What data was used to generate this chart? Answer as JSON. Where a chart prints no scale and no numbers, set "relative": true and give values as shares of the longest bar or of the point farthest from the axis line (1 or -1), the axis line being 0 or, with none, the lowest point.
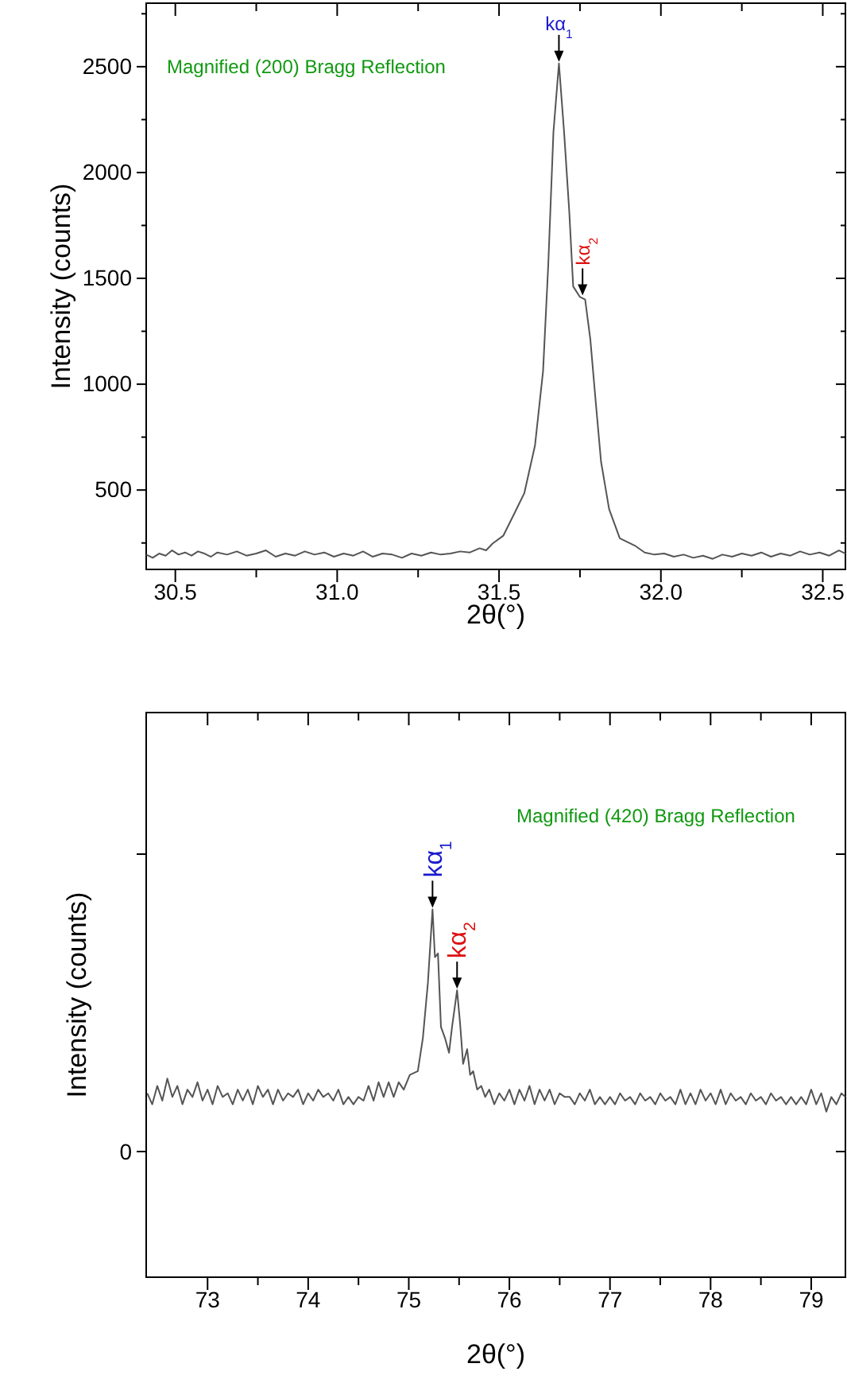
{
  "chart_data": [
    {
      "type": "line",
      "xlabel": "2θ(°)",
      "ylabel": "Intensity (counts)",
      "xlim": [
        30.41,
        32.57
      ],
      "ylim": [
        125,
        2800
      ],
      "xticks": [
        30.5,
        {
          "value": 30.75,
          "label": null
        },
        "31.0",
        {
          "value": 31.25,
          "label": null
        },
        31.5,
        {
          "value": 31.75,
          "label": null
        },
        "32.0",
        {
          "value": 32.25,
          "label": null
        },
        32.5
      ],
      "yticks": [
        {
          "value": 250,
          "label": null
        },
        500,
        {
          "value": 750,
          "label": null
        },
        1000,
        {
          "value": 1250,
          "label": null
        },
        1500,
        {
          "value": 1750,
          "label": null
        },
        2000,
        {
          "value": 2250,
          "label": null
        },
        2500,
        {
          "value": 2750,
          "label": null
        }
      ],
      "annotations": [
        "Magnified (200) Bragg Reflection",
        {
          "text": "kα$_{1}$",
          "x": 31.685,
          "y": 2515
        },
        {
          "text": "kα$_{2}$",
          "x": 31.758,
          "y": 1412
        }
      ],
      "series": [
        {
          "color": "#555555",
          "x": [
            30.41,
            30.43,
            30.45,
            30.47,
            30.49,
            30.51,
            30.53,
            30.55,
            30.57,
            30.59,
            30.61,
            30.63,
            30.66,
            30.69,
            30.72,
            30.75,
            30.78,
            30.81,
            30.84,
            30.87,
            30.9,
            30.93,
            30.96,
            30.99,
            31.02,
            31.05,
            31.08,
            31.11,
            31.14,
            31.17,
            31.2,
            31.23,
            31.26,
            31.29,
            31.32,
            31.35,
            31.38,
            31.41,
            31.44,
            31.46,
            31.48,
            31.513,
            31.546,
            31.578,
            31.611,
            31.636,
            31.652,
            31.668,
            31.685,
            31.701,
            31.717,
            31.729,
            31.75,
            31.766,
            31.782,
            31.799,
            31.815,
            31.84,
            31.873,
            31.922,
            31.95,
            31.98,
            32.01,
            32.04,
            32.07,
            32.1,
            32.13,
            32.16,
            32.19,
            32.22,
            32.25,
            32.28,
            32.31,
            32.34,
            32.37,
            32.4,
            32.43,
            32.46,
            32.49,
            32.52,
            32.55,
            32.57
          ],
          "values": [
            195,
            180,
            200,
            190,
            215,
            195,
            205,
            190,
            210,
            200,
            185,
            205,
            195,
            210,
            190,
            200,
            215,
            185,
            200,
            190,
            210,
            195,
            205,
            185,
            200,
            190,
            210,
            185,
            200,
            195,
            180,
            200,
            190,
            205,
            195,
            200,
            210,
            205,
            225,
            215,
            247,
            284,
            385,
            485,
            710,
            1062,
            1562,
            2190,
            2515,
            2190,
            1814,
            1462,
            1412,
            1400,
            1212,
            911,
            635,
            410,
            272,
            235,
            205,
            195,
            200,
            185,
            195,
            180,
            190,
            175,
            195,
            185,
            200,
            190,
            205,
            185,
            200,
            190,
            210,
            195,
            205,
            190,
            215,
            200
          ]
        }
      ]
    },
    {
      "type": "line",
      "relative": true,
      "xlabel": "2θ(°)",
      "ylabel": "Intensity (counts)",
      "xlim": [
        72.39,
        79.34
      ],
      "xticks": [
        73,
        {
          "value": 73.5,
          "label": null
        },
        74,
        {
          "value": 74.5,
          "label": null
        },
        75,
        {
          "value": 75.5,
          "label": null
        },
        76,
        {
          "value": 76.5,
          "label": null
        },
        77,
        {
          "value": 77.5,
          "label": null
        },
        78,
        {
          "value": 78.5,
          "label": null
        },
        79
      ],
      "annotations": [
        "Magnified (420) Bragg Reflection",
        "0",
        {
          "text": "kα$_{1}$",
          "x": 75.236,
          "y": 1
        },
        {
          "text": "kα$_{2}$",
          "x": 75.48,
          "y": 0.78
        }
      ],
      "series": [
        {
          "color": "#555555",
          "x": [
            72.4,
            72.45,
            72.5,
            72.55,
            72.6,
            72.65,
            72.7,
            72.75,
            72.8,
            72.85,
            72.9,
            72.95,
            73,
            73.05,
            73.1,
            73.15,
            73.2,
            73.25,
            73.3,
            73.35,
            73.4,
            73.45,
            73.5,
            73.55,
            73.6,
            73.65,
            73.7,
            73.75,
            73.8,
            73.85,
            73.9,
            73.95,
            74,
            74.05,
            74.1,
            74.15,
            74.2,
            74.25,
            74.3,
            74.35,
            74.4,
            74.45,
            74.5,
            74.55,
            74.6,
            74.65,
            74.7,
            74.75,
            74.8,
            74.85,
            74.9,
            74.95,
            75.01,
            75.09,
            75.14,
            75.19,
            75.236,
            75.26,
            75.29,
            75.32,
            75.36,
            75.4,
            75.43,
            75.46,
            75.48,
            75.51,
            75.54,
            75.58,
            75.61,
            75.64,
            75.68,
            75.72,
            75.76,
            75.8,
            75.85,
            75.9,
            75.95,
            76,
            76.05,
            76.1,
            76.15,
            76.2,
            76.25,
            76.3,
            76.35,
            76.4,
            76.45,
            76.5,
            76.55,
            76.6,
            76.65,
            76.7,
            76.75,
            76.8,
            76.85,
            76.9,
            76.95,
            77,
            77.05,
            77.1,
            77.15,
            77.2,
            77.25,
            77.3,
            77.35,
            77.4,
            77.45,
            77.5,
            77.55,
            77.6,
            77.65,
            77.7,
            77.75,
            77.8,
            77.85,
            77.9,
            77.95,
            78,
            78.05,
            78.1,
            78.15,
            78.2,
            78.25,
            78.3,
            78.35,
            78.4,
            78.45,
            78.5,
            78.55,
            78.6,
            78.65,
            78.7,
            78.75,
            78.8,
            78.85,
            78.9,
            78.95,
            79,
            79.05,
            79.1,
            79.15,
            79.2,
            79.25,
            79.3,
            79.34
          ],
          "values": [
            0.5,
            0.47,
            0.52,
            0.48,
            0.54,
            0.49,
            0.52,
            0.47,
            0.51,
            0.49,
            0.53,
            0.48,
            0.51,
            0.47,
            0.52,
            0.49,
            0.5,
            0.47,
            0.51,
            0.48,
            0.51,
            0.47,
            0.52,
            0.49,
            0.51,
            0.47,
            0.51,
            0.48,
            0.5,
            0.49,
            0.51,
            0.47,
            0.5,
            0.48,
            0.51,
            0.49,
            0.5,
            0.48,
            0.51,
            0.47,
            0.49,
            0.47,
            0.49,
            0.48,
            0.52,
            0.48,
            0.53,
            0.49,
            0.53,
            0.49,
            0.53,
            0.51,
            0.55,
            0.56,
            0.65,
            0.8,
            1,
            0.87,
            0.88,
            0.68,
            0.65,
            0.61,
            0.68,
            0.74,
            0.78,
            0.69,
            0.58,
            0.62,
            0.55,
            0.56,
            0.51,
            0.52,
            0.49,
            0.51,
            0.47,
            0.5,
            0.48,
            0.51,
            0.47,
            0.51,
            0.48,
            0.52,
            0.47,
            0.51,
            0.48,
            0.51,
            0.47,
            0.5,
            0.49,
            0.49,
            0.47,
            0.5,
            0.48,
            0.51,
            0.47,
            0.49,
            0.47,
            0.49,
            0.47,
            0.5,
            0.48,
            0.49,
            0.47,
            0.5,
            0.48,
            0.49,
            0.47,
            0.5,
            0.48,
            0.49,
            0.47,
            0.51,
            0.47,
            0.5,
            0.47,
            0.51,
            0.48,
            0.5,
            0.47,
            0.51,
            0.47,
            0.5,
            0.48,
            0.49,
            0.47,
            0.5,
            0.48,
            0.49,
            0.47,
            0.5,
            0.48,
            0.49,
            0.47,
            0.49,
            0.47,
            0.49,
            0.47,
            0.51,
            0.47,
            0.5,
            0.45,
            0.49,
            0.47,
            0.5,
            0.49
          ]
        }
      ]
    }
  ]
}
